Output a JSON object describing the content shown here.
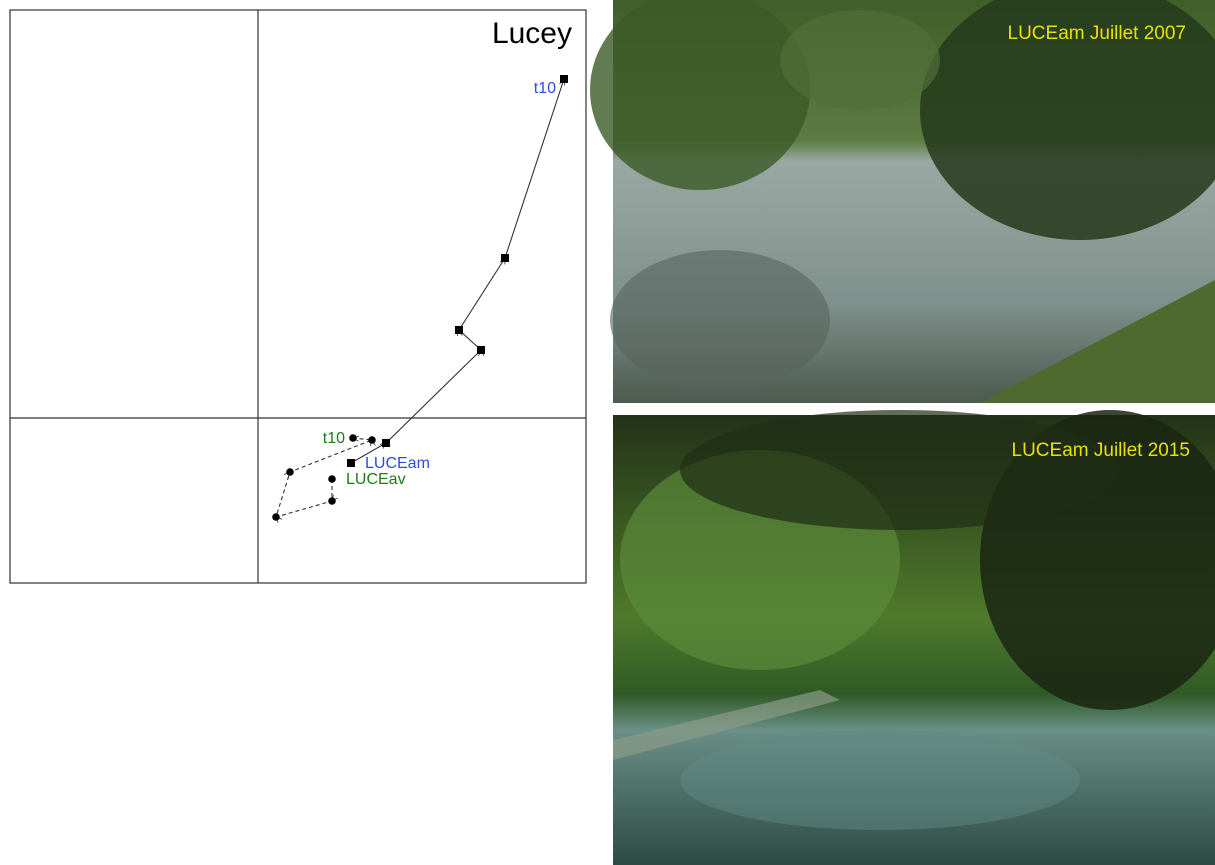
{
  "chart_data": {
    "type": "trajectory",
    "title": "Lucey",
    "xlim": [
      -2.48,
      3.28
    ],
    "ylim": [
      -1.65,
      4.08
    ],
    "series": [
      {
        "name": "LUCEam",
        "color": "#2b4de0",
        "marker": "square",
        "line": "solid",
        "end_label": "t10",
        "x": [
          0.93,
          1.28,
          2.23,
          2.01,
          2.47,
          3.06
        ],
        "values": [
          -0.45,
          -0.25,
          0.68,
          0.88,
          1.6,
          3.39
        ]
      },
      {
        "name": "LUCEav",
        "color": "#1e7a1e",
        "marker": "circle",
        "line": "dashed",
        "end_label": "t10",
        "x": [
          0.74,
          0.74,
          0.18,
          0.32,
          1.14,
          0.95
        ],
        "values": [
          -0.61,
          -0.83,
          -0.99,
          -0.54,
          -0.22,
          -0.2
        ]
      }
    ]
  },
  "photos": [
    {
      "caption": "LUCEam Juillet 2007"
    },
    {
      "caption": "LUCEam Juillet 2015"
    }
  ]
}
